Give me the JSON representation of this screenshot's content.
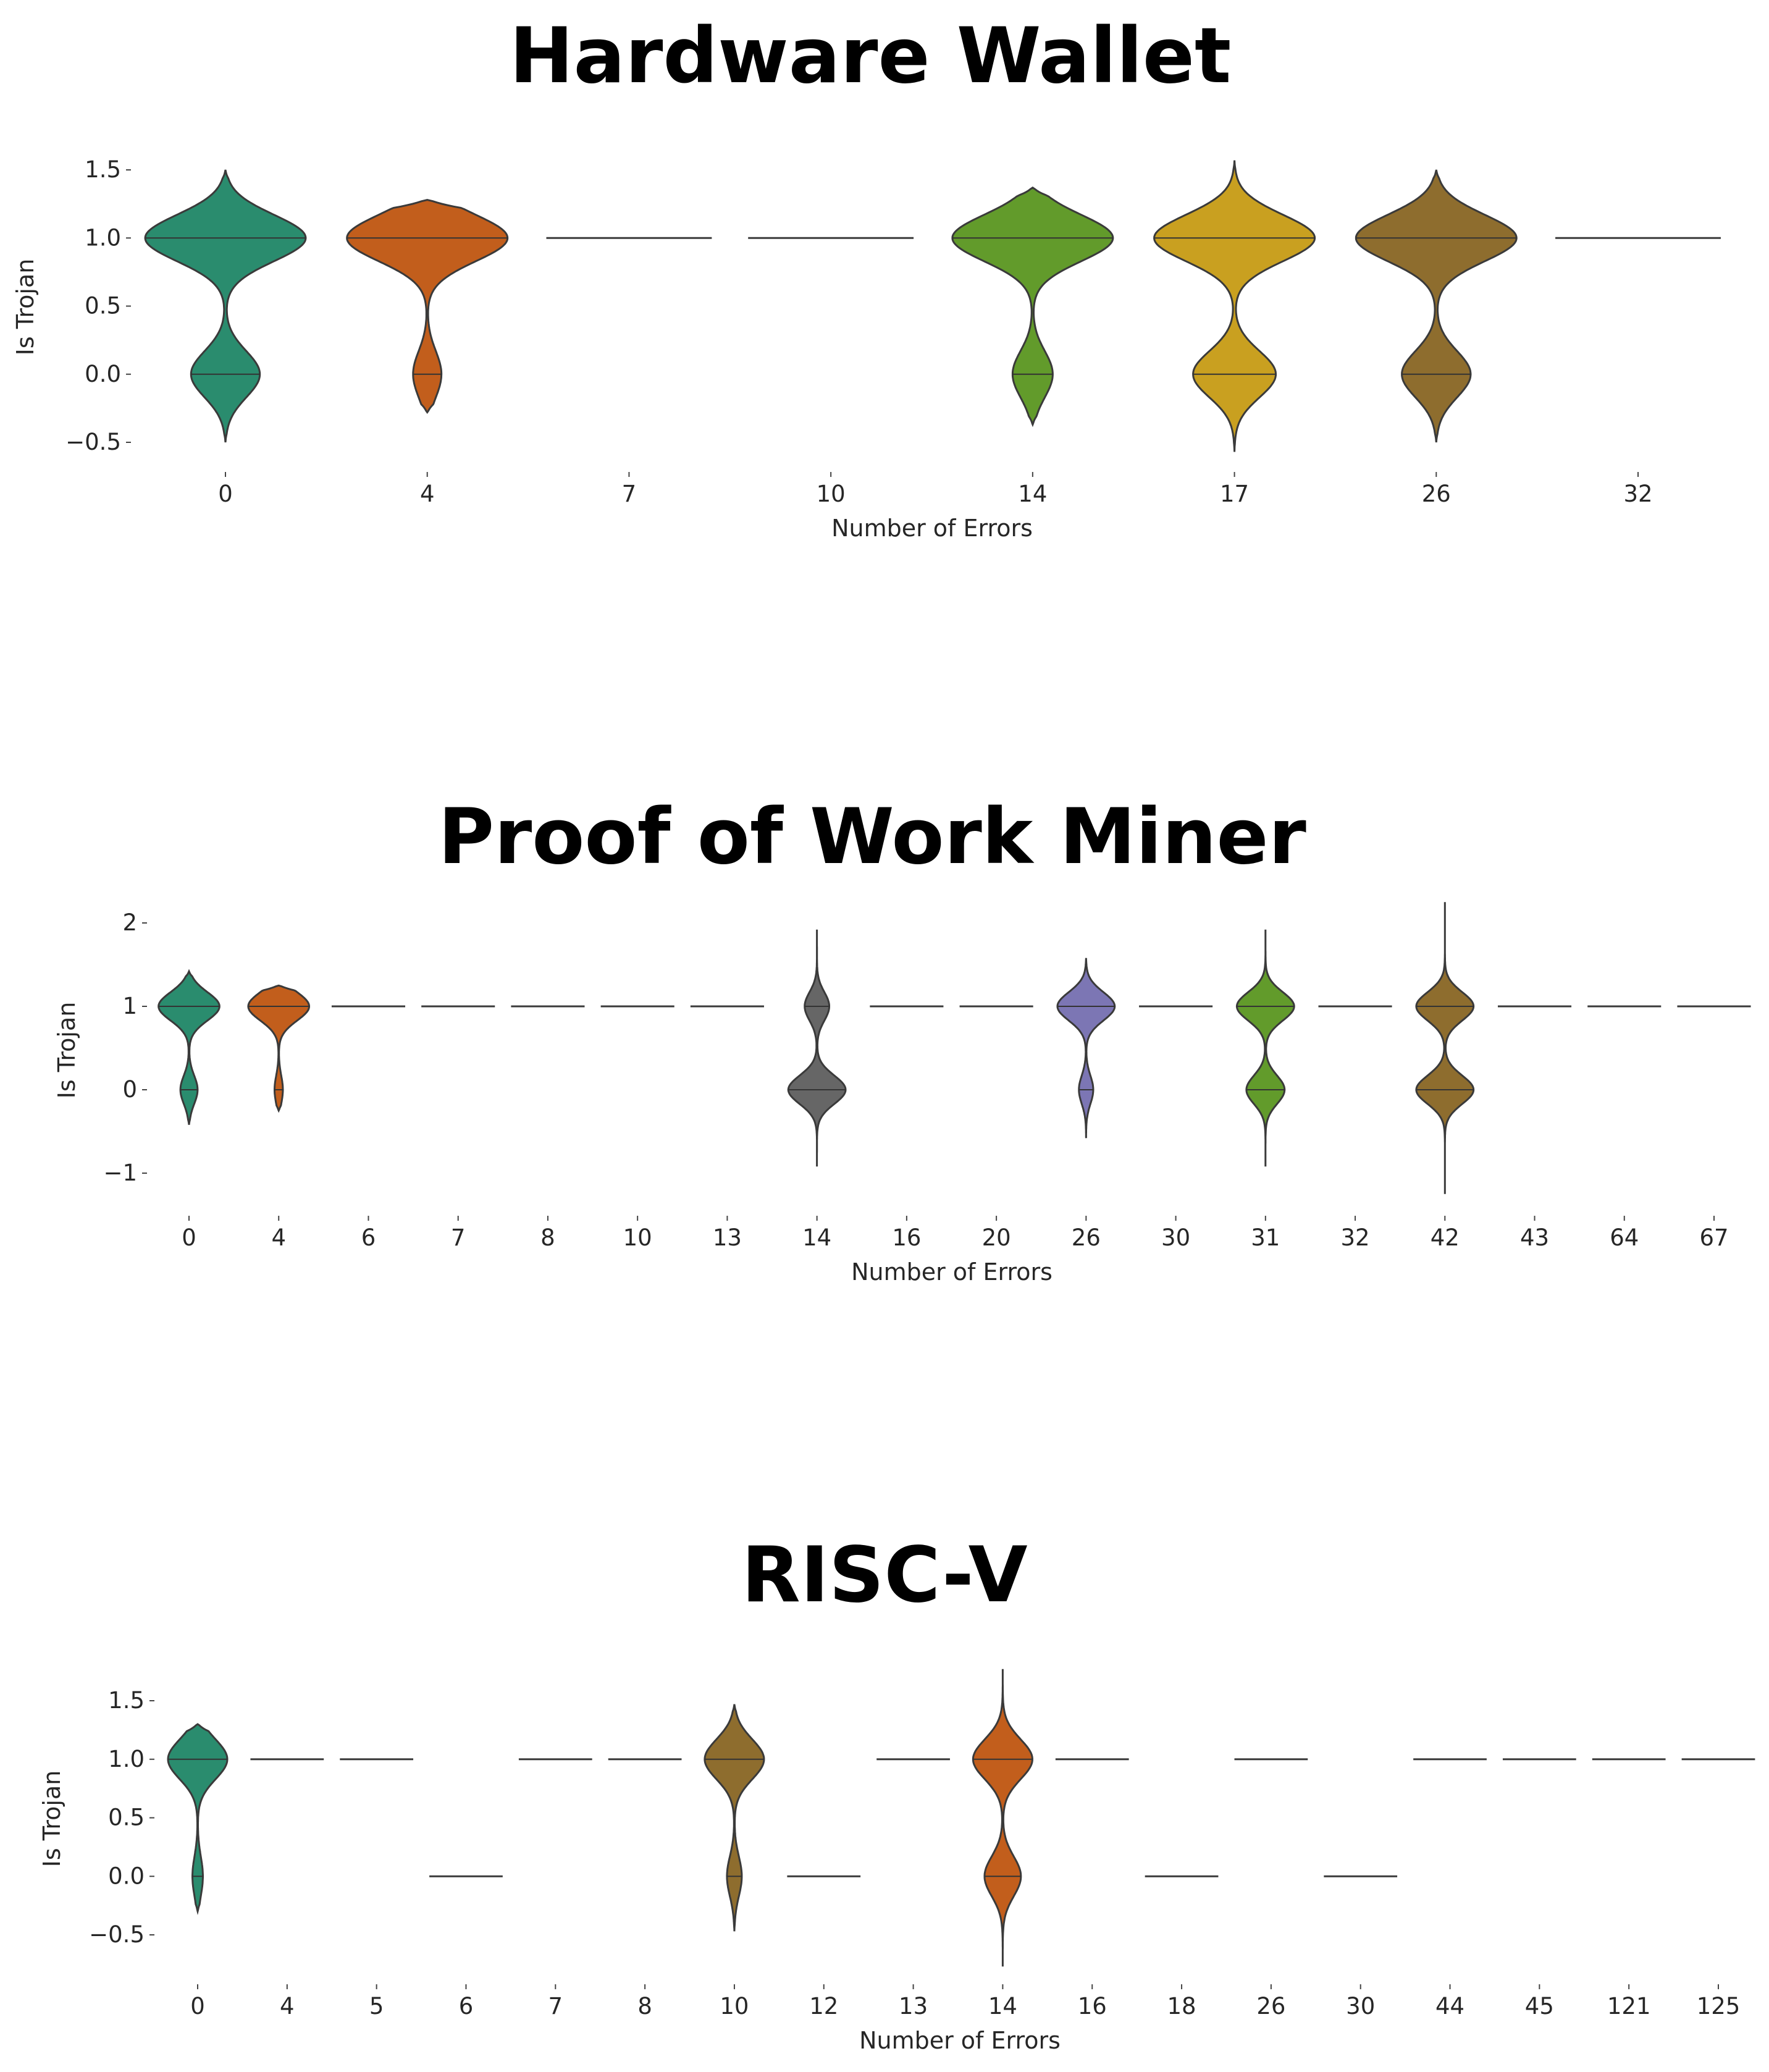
{
  "chart_data": [
    {
      "type": "violin",
      "title": "Hardware Wallet",
      "xlabel": "Number of Errors",
      "ylabel": "Is Trojan",
      "ylim": [
        -0.58,
        1.58
      ],
      "yticks": [
        -0.5,
        0.0,
        0.5,
        1.0,
        1.5
      ],
      "ytick_labels": [
        "−0.5",
        "0.0",
        "0.5",
        "1.0",
        "1.5"
      ],
      "grid": false,
      "categories": [
        "0",
        "4",
        "7",
        "10",
        "14",
        "17",
        "26",
        "32"
      ],
      "violins": [
        {
          "color": "#2a8c6e",
          "width": 1.0,
          "p_trojan": 0.7,
          "range": [
            -0.5,
            1.5
          ],
          "inner": [
            0,
            1
          ]
        },
        {
          "color": "#c25e1c",
          "width": 1.0,
          "p_trojan": 0.85,
          "range": [
            -0.28,
            1.28
          ],
          "inner": [
            0,
            1
          ]
        },
        {
          "color": "#ffffff",
          "width": 0.0,
          "p_trojan": 1.0,
          "range": [
            1,
            1
          ],
          "inner": [
            1
          ]
        },
        {
          "color": "#ffffff",
          "width": 0.0,
          "p_trojan": 1.0,
          "range": [
            1,
            1
          ],
          "inner": [
            1
          ]
        },
        {
          "color": "#629b2b",
          "width": 1.0,
          "p_trojan": 0.8,
          "range": [
            -0.37,
            1.37
          ],
          "inner": [
            0,
            1
          ]
        },
        {
          "color": "#c9a020",
          "width": 1.0,
          "p_trojan": 0.66,
          "range": [
            -0.57,
            1.57
          ],
          "inner": [
            0,
            1
          ]
        },
        {
          "color": "#8e6d2e",
          "width": 1.0,
          "p_trojan": 0.7,
          "range": [
            -0.5,
            1.5
          ],
          "inner": [
            0,
            1
          ]
        },
        {
          "color": "#ffffff",
          "width": 0.0,
          "p_trojan": 1.0,
          "range": [
            1,
            1
          ],
          "inner": [
            1
          ]
        }
      ]
    },
    {
      "type": "violin",
      "title": "Proof of Work Miner",
      "xlabel": "Number of Errors",
      "ylabel": "Is Trojan",
      "ylim": [
        -1.3,
        2.25
      ],
      "yticks": [
        -1,
        0,
        1,
        2
      ],
      "ytick_labels": [
        "−1",
        "0",
        "1",
        "2"
      ],
      "grid": false,
      "categories": [
        "0",
        "4",
        "6",
        "7",
        "8",
        "10",
        "13",
        "14",
        "16",
        "20",
        "26",
        "30",
        "31",
        "32",
        "42",
        "43",
        "64",
        "67"
      ],
      "violins": [
        {
          "color": "#2a8c6e",
          "width": 0.85,
          "p_trojan": 0.78,
          "range": [
            -0.42,
            1.42
          ],
          "inner": [
            0,
            1
          ]
        },
        {
          "color": "#c25e1c",
          "width": 0.85,
          "p_trojan": 0.88,
          "range": [
            -0.25,
            1.25
          ],
          "inner": [
            0,
            1
          ]
        },
        {
          "color": "#ffffff",
          "width": 0.0,
          "p_trojan": 1.0,
          "range": [
            1,
            1
          ],
          "inner": [
            1
          ]
        },
        {
          "color": "#ffffff",
          "width": 0.0,
          "p_trojan": 1.0,
          "range": [
            1,
            1
          ],
          "inner": [
            1
          ]
        },
        {
          "color": "#ffffff",
          "width": 0.0,
          "p_trojan": 1.0,
          "range": [
            1,
            1
          ],
          "inner": [
            1
          ]
        },
        {
          "color": "#ffffff",
          "width": 0.0,
          "p_trojan": 1.0,
          "range": [
            1,
            1
          ],
          "inner": [
            1
          ]
        },
        {
          "color": "#ffffff",
          "width": 0.0,
          "p_trojan": 1.0,
          "range": [
            1,
            1
          ],
          "inner": [
            1
          ]
        },
        {
          "color": "#666666",
          "width": 0.8,
          "p_trojan": 0.3,
          "range": [
            -0.92,
            1.92
          ],
          "inner": [
            0,
            1
          ]
        },
        {
          "color": "#ffffff",
          "width": 0.0,
          "p_trojan": 1.0,
          "range": [
            1,
            1
          ],
          "inner": [
            1
          ]
        },
        {
          "color": "#ffffff",
          "width": 0.0,
          "p_trojan": 1.0,
          "range": [
            1,
            1
          ],
          "inner": [
            1
          ]
        },
        {
          "color": "#7c76b4",
          "width": 0.8,
          "p_trojan": 0.8,
          "range": [
            -0.58,
            1.58
          ],
          "inner": [
            0,
            1
          ]
        },
        {
          "color": "#ffffff",
          "width": 0.0,
          "p_trojan": 1.0,
          "range": [
            1,
            1
          ],
          "inner": [
            1
          ]
        },
        {
          "color": "#629b2b",
          "width": 0.8,
          "p_trojan": 0.6,
          "range": [
            -0.92,
            1.92
          ],
          "inner": [
            0,
            1
          ]
        },
        {
          "color": "#ffffff",
          "width": 0.0,
          "p_trojan": 1.0,
          "range": [
            1,
            1
          ],
          "inner": [
            1
          ]
        },
        {
          "color": "#8e6d2e",
          "width": 0.8,
          "p_trojan": 0.5,
          "range": [
            -1.25,
            2.25
          ],
          "inner": [
            0,
            1
          ]
        },
        {
          "color": "#ffffff",
          "width": 0.0,
          "p_trojan": 1.0,
          "range": [
            1,
            1
          ],
          "inner": [
            1
          ]
        },
        {
          "color": "#ffffff",
          "width": 0.0,
          "p_trojan": 1.0,
          "range": [
            1,
            1
          ],
          "inner": [
            1
          ]
        },
        {
          "color": "#ffffff",
          "width": 0.0,
          "p_trojan": 1.0,
          "range": [
            1,
            1
          ],
          "inner": [
            1
          ]
        }
      ]
    },
    {
      "type": "violin",
      "title": "RISC-V",
      "xlabel": "Number of Errors",
      "ylabel": "Is Trojan",
      "ylim": [
        -0.8,
        1.8
      ],
      "yticks": [
        -0.5,
        0.0,
        0.5,
        1.0,
        1.5
      ],
      "ytick_labels": [
        "−0.5",
        "0.0",
        "0.5",
        "1.0",
        "1.5"
      ],
      "grid": false,
      "categories": [
        "0",
        "4",
        "5",
        "6",
        "7",
        "8",
        "10",
        "12",
        "13",
        "14",
        "16",
        "18",
        "26",
        "30",
        "44",
        "45",
        "121",
        "125"
      ],
      "violins": [
        {
          "color": "#2a8c6e",
          "width": 0.8,
          "p_trojan": 0.85,
          "range": [
            -0.3,
            1.3
          ],
          "inner": [
            0,
            1
          ]
        },
        {
          "color": "#ffffff",
          "width": 0.0,
          "p_trojan": 1.0,
          "range": [
            1,
            1
          ],
          "inner": [
            1
          ]
        },
        {
          "color": "#ffffff",
          "width": 0.0,
          "p_trojan": 1.0,
          "range": [
            1,
            1
          ],
          "inner": [
            1
          ]
        },
        {
          "color": "#ffffff",
          "width": 0.0,
          "p_trojan": 0.0,
          "range": [
            0,
            0
          ],
          "inner": [
            0
          ]
        },
        {
          "color": "#ffffff",
          "width": 0.0,
          "p_trojan": 1.0,
          "range": [
            1,
            1
          ],
          "inner": [
            1
          ]
        },
        {
          "color": "#ffffff",
          "width": 0.0,
          "p_trojan": 1.0,
          "range": [
            1,
            1
          ],
          "inner": [
            1
          ]
        },
        {
          "color": "#8e6d2e",
          "width": 0.8,
          "p_trojan": 0.8,
          "range": [
            -0.47,
            1.47
          ],
          "inner": [
            0,
            1
          ]
        },
        {
          "color": "#ffffff",
          "width": 0.0,
          "p_trojan": 0.0,
          "range": [
            0,
            0
          ],
          "inner": [
            0
          ]
        },
        {
          "color": "#ffffff",
          "width": 0.0,
          "p_trojan": 1.0,
          "range": [
            1,
            1
          ],
          "inner": [
            1
          ]
        },
        {
          "color": "#c25e1c",
          "width": 0.8,
          "p_trojan": 0.62,
          "range": [
            -0.77,
            1.77
          ],
          "inner": [
            0,
            1
          ]
        },
        {
          "color": "#ffffff",
          "width": 0.0,
          "p_trojan": 1.0,
          "range": [
            1,
            1
          ],
          "inner": [
            1
          ]
        },
        {
          "color": "#ffffff",
          "width": 0.0,
          "p_trojan": 0.0,
          "range": [
            0,
            0
          ],
          "inner": [
            0
          ]
        },
        {
          "color": "#ffffff",
          "width": 0.0,
          "p_trojan": 1.0,
          "range": [
            1,
            1
          ],
          "inner": [
            1
          ]
        },
        {
          "color": "#ffffff",
          "width": 0.0,
          "p_trojan": 0.0,
          "range": [
            0,
            0
          ],
          "inner": [
            0
          ]
        },
        {
          "color": "#ffffff",
          "width": 0.0,
          "p_trojan": 1.0,
          "range": [
            1,
            1
          ],
          "inner": [
            1
          ]
        },
        {
          "color": "#ffffff",
          "width": 0.0,
          "p_trojan": 1.0,
          "range": [
            1,
            1
          ],
          "inner": [
            1
          ]
        },
        {
          "color": "#ffffff",
          "width": 0.0,
          "p_trojan": 1.0,
          "range": [
            1,
            1
          ],
          "inner": [
            1
          ]
        },
        {
          "color": "#ffffff",
          "width": 0.0,
          "p_trojan": 1.0,
          "range": [
            1,
            1
          ],
          "inner": [
            1
          ]
        }
      ]
    }
  ]
}
